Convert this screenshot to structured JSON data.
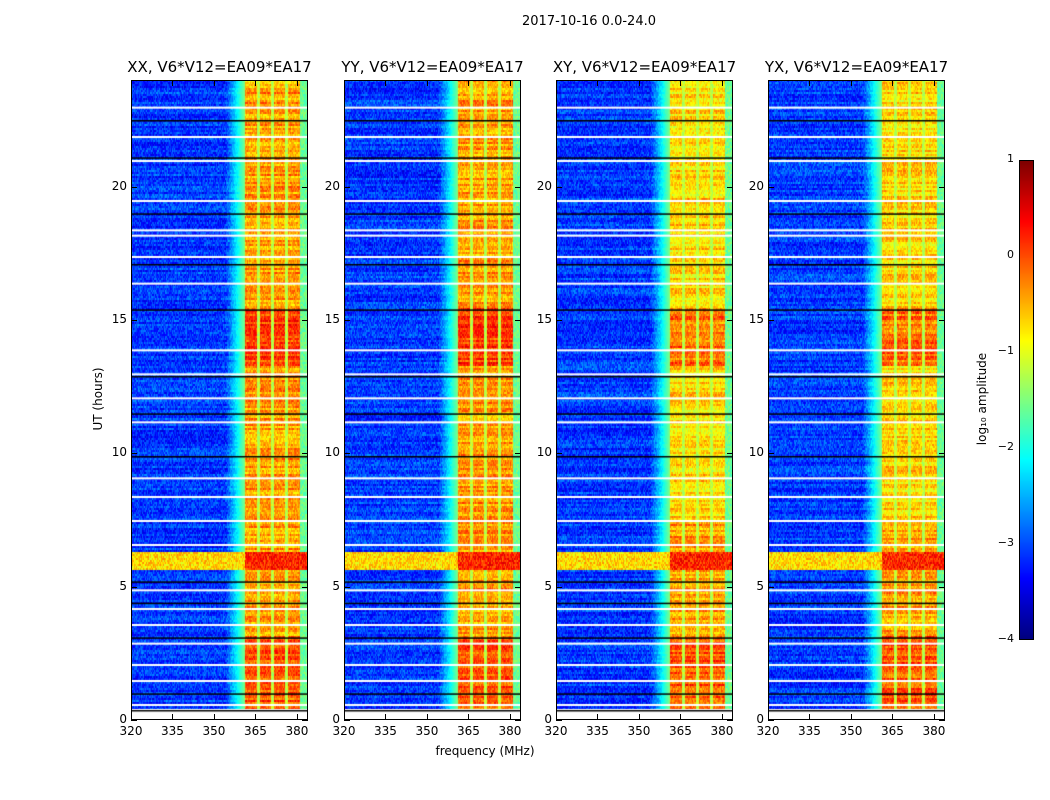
{
  "chart_data": {
    "type": "heatmap",
    "title": "2017-10-16 0.0-24.0",
    "xlabel": "frequency (MHz)",
    "ylabel": "UT (hours)",
    "xlim": [
      320,
      384
    ],
    "ylim": [
      0,
      24
    ],
    "xticks": [
      320,
      335,
      350,
      365,
      380
    ],
    "yticks": [
      0,
      5,
      10,
      15,
      20
    ],
    "panels": [
      {
        "title": "XX, V6*V12=EA09*EA17"
      },
      {
        "title": "YY, V6*V12=EA09*EA17"
      },
      {
        "title": "XY, V6*V12=EA09*EA17"
      },
      {
        "title": "YX, V6*V12=EA09*EA17"
      }
    ],
    "value_description": {
      "background_log_amp": -3,
      "band_range_mhz": [
        361,
        381
      ],
      "band_log_amp": 0,
      "band_gaps_mhz": [
        366,
        371,
        376
      ],
      "rfi_hours": [
        5.7,
        6.3
      ],
      "flagged_hours_white": [
        0.6,
        1.5,
        2.1,
        2.9,
        3.6,
        4.2,
        4.9,
        6.6,
        7.5,
        8.4,
        9.1,
        11.2,
        12.1,
        13.0,
        13.9,
        16.4,
        17.4,
        18.2,
        18.4,
        19.5,
        21.0,
        21.9,
        23.0
      ],
      "flagged_hours_black": [
        0.4,
        1.0,
        3.1,
        4.4,
        5.2,
        9.9,
        11.5,
        12.9,
        15.4,
        17.1,
        19.0,
        21.1,
        22.5
      ]
    },
    "colorbar": {
      "label": "log₁₀ amplitude",
      "range": [
        -4,
        1
      ],
      "ticks": [
        "1",
        "0",
        "−1",
        "−2",
        "−3",
        "−4"
      ],
      "colormap": "jet"
    }
  }
}
